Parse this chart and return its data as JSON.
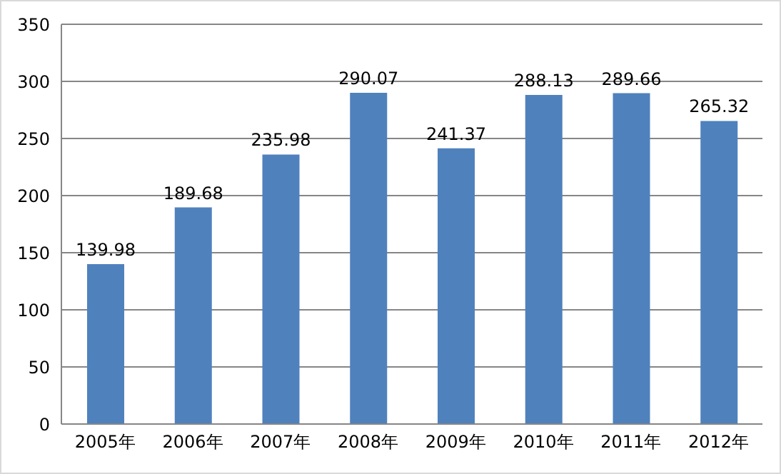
{
  "chart_data": {
    "type": "bar",
    "categories": [
      "2005年",
      "2006年",
      "2007年",
      "2008年",
      "2009年",
      "2010年",
      "2011年",
      "2012年"
    ],
    "values": [
      139.98,
      189.68,
      235.98,
      290.07,
      241.37,
      288.13,
      289.66,
      265.32
    ],
    "color": "#4f81bd",
    "ylim": [
      0,
      350
    ],
    "yticks": [
      0,
      50,
      100,
      150,
      200,
      250,
      300,
      350
    ],
    "grid": "y",
    "data_labels": true
  }
}
